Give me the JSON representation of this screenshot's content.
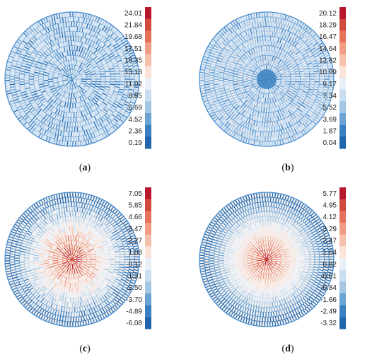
{
  "colors": {
    "scale": [
      "#2166ac",
      "#3a80c0",
      "#6ba3d3",
      "#a2c6e3",
      "#c9def0",
      "#e9f0f8",
      "#fbe3da",
      "#f7c0ab",
      "#f19d83",
      "#e6725a",
      "#d24a3b",
      "#b7182c"
    ],
    "ring": "#4a8fd0",
    "accent_red": "#d24a3b"
  },
  "panels": [
    {
      "id": "a",
      "label_open": "(",
      "label_letter": "a",
      "label_close": ")",
      "pattern": "noisy-blue",
      "ticks": [
        "24.01",
        "21.84",
        "19.68",
        "17.51",
        "15.35",
        "13.18",
        "11.02",
        "8.85",
        "6.69",
        "4.52",
        "2.36",
        "0.19"
      ]
    },
    {
      "id": "b",
      "label_open": "(",
      "label_letter": "b",
      "label_close": ")",
      "pattern": "concentric-blue-rings",
      "ticks": [
        "20.12",
        "18.29",
        "16.47",
        "14.64",
        "12.82",
        "10.99",
        "9.17",
        "7.34",
        "5.52",
        "3.69",
        "1.87",
        "0.04"
      ]
    },
    {
      "id": "c",
      "label_open": "(",
      "label_letter": "c",
      "label_close": ")",
      "pattern": "red-center-blue-edge-noisy",
      "ticks": [
        "7.05",
        "5.85",
        "4.66",
        "3.47",
        "2.27",
        "1.08",
        "-0.12",
        "-1.31",
        "-2.50",
        "-3.70",
        "-4.89",
        "-6.08"
      ]
    },
    {
      "id": "d",
      "label_open": "(",
      "label_letter": "d",
      "label_close": ")",
      "pattern": "red-center-blue-edge-rings",
      "ticks": [
        "5.77",
        "4.95",
        "4.12",
        "3.29",
        "2.47",
        "1.64",
        "0.82",
        "-0.01",
        "-0.84",
        "-1.66",
        "-2.49",
        "-3.32"
      ]
    }
  ]
}
